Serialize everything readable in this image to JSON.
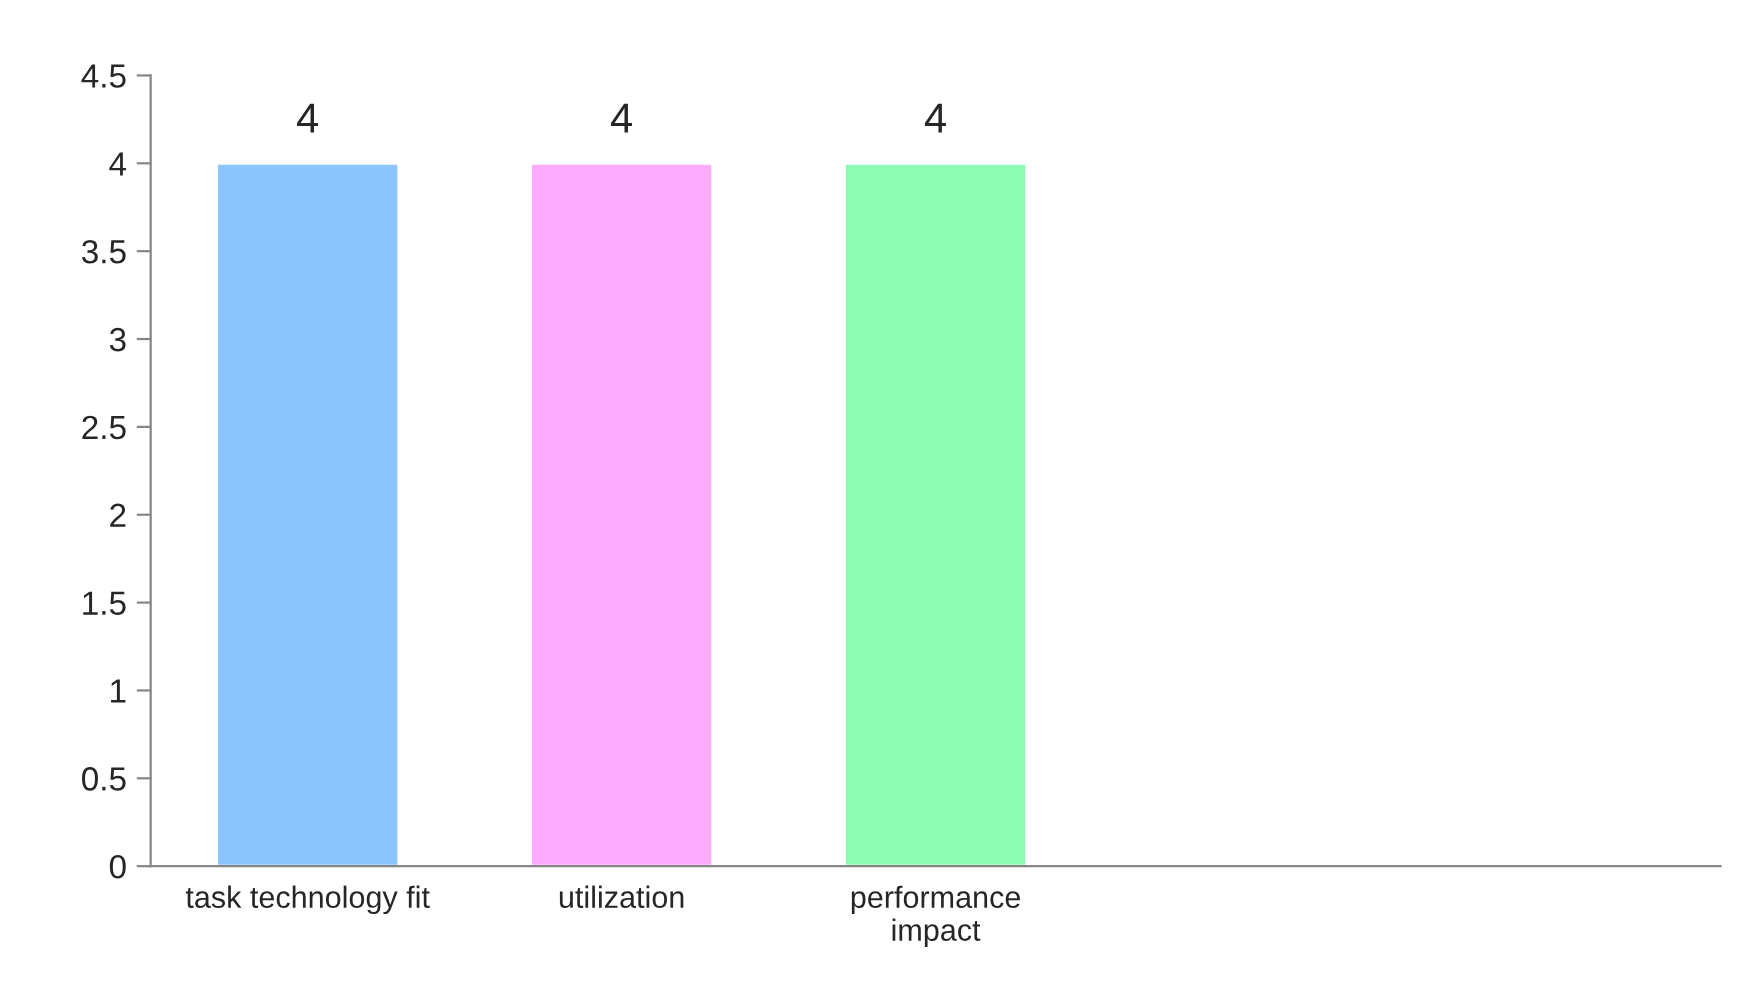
{
  "chart_data": {
    "type": "bar",
    "categories": [
      "task technology fit",
      "utilization",
      "performance\nimpact",
      null,
      null
    ],
    "values": [
      4,
      4,
      4,
      null,
      null
    ],
    "colors": [
      "#8cc4fc",
      "#fcaafc",
      "#8cfcb4",
      "#8cc4fc",
      "#8cc4fc"
    ],
    "ylim": [
      0,
      4.5
    ],
    "yticks": [
      0,
      0.5,
      1,
      1.5,
      2,
      2.5,
      3,
      3.5,
      4,
      4.5
    ],
    "data_labels": true,
    "grid": false,
    "legend": false
  }
}
